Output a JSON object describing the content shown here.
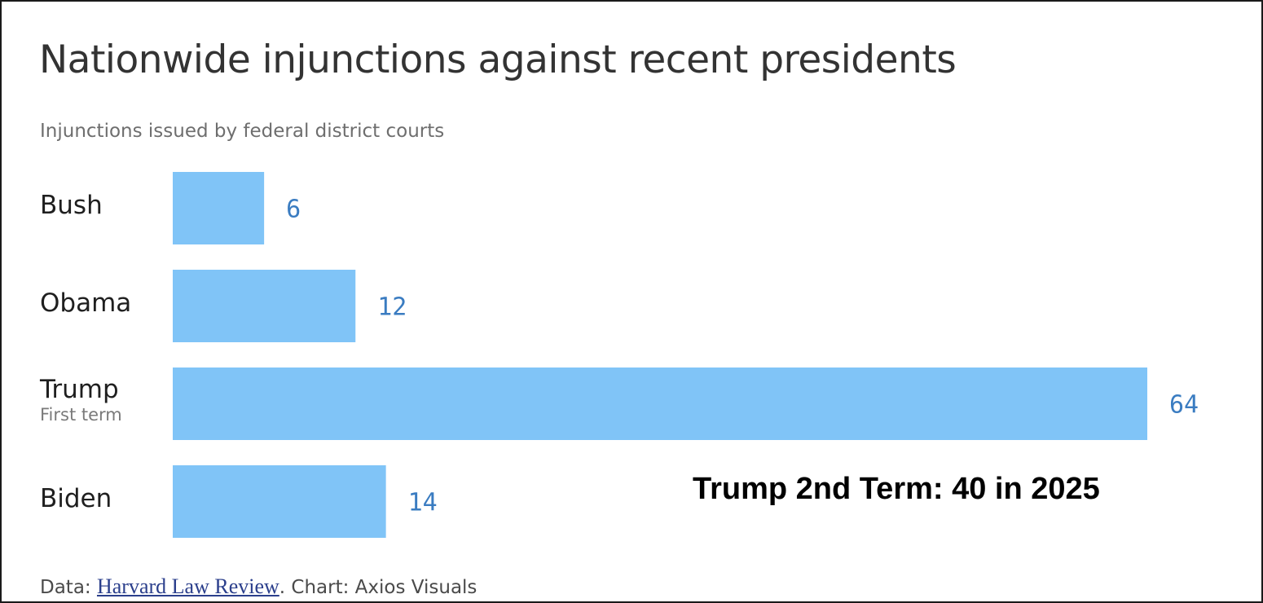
{
  "title": "Nationwide injunctions against recent presidents",
  "subtitle": "Injunctions issued by federal district courts",
  "annotation": "Trump 2nd Term: 40 in 2025",
  "footer": {
    "data_prefix": "Data: ",
    "source_link": "Harvard Law Review",
    "suffix": ". Chart: Axios Visuals"
  },
  "colors": {
    "bar": "#80c4f7",
    "value_label": "#3a7cc1"
  },
  "chart_data": {
    "type": "bar",
    "orientation": "horizontal",
    "title": "Nationwide injunctions against recent presidents",
    "subtitle": "Injunctions issued by federal district courts",
    "categories": [
      "Bush",
      "Obama",
      "Trump",
      "Biden"
    ],
    "category_sublabels": [
      "",
      "",
      "First term",
      ""
    ],
    "values": [
      6,
      12,
      64,
      14
    ],
    "xlim": [
      0,
      64
    ],
    "grid": false,
    "legend": "none",
    "annotations": [
      "Trump 2nd Term: 40 in 2025"
    ]
  }
}
